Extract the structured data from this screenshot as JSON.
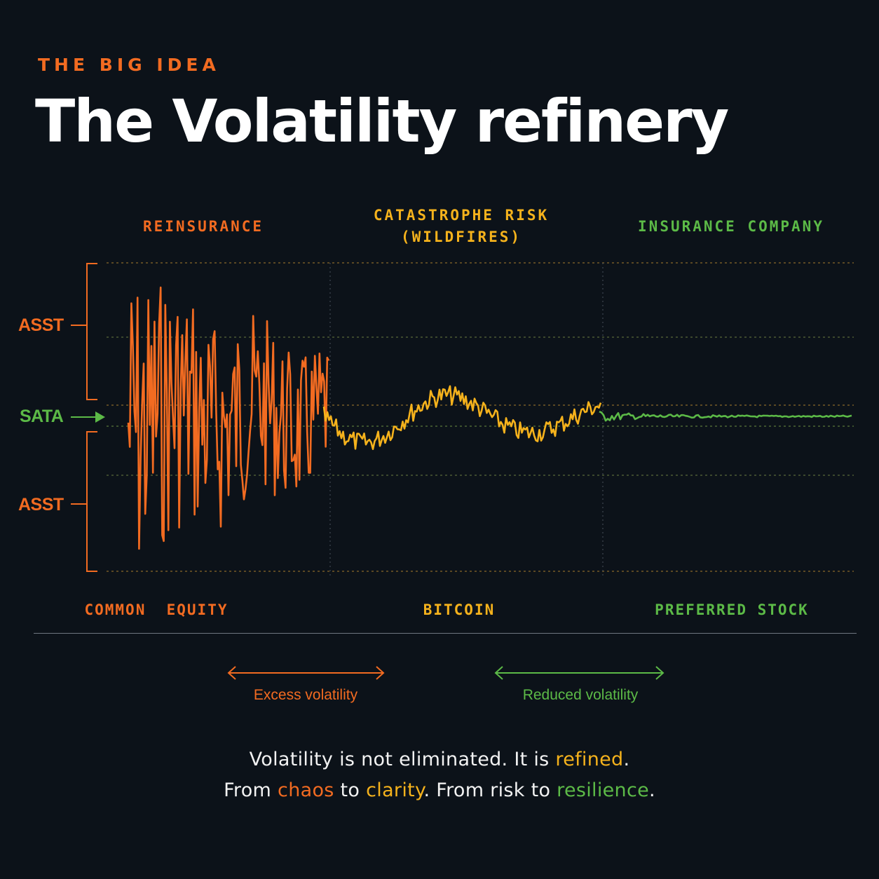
{
  "header": {
    "eyebrow": "THE BIG IDEA",
    "title": "The Volatility refinery"
  },
  "zones": {
    "top": [
      {
        "label": "REINSURANCE",
        "color": "#f26b21"
      },
      {
        "label": "CATASTROPHE RISK",
        "label2": "(WILDFIRES)",
        "color": "#f5b21c"
      },
      {
        "label": "INSURANCE COMPANY",
        "color": "#5cba47"
      }
    ],
    "bottom": [
      {
        "label": "COMMON  EQUITY",
        "color": "#f26b21"
      },
      {
        "label": "BITCOIN",
        "color": "#f5b21c"
      },
      {
        "label": "PREFERRED STOCK",
        "color": "#5cba47"
      }
    ]
  },
  "side_labels": {
    "upper": "ASST",
    "center": "SATA",
    "lower": "ASST"
  },
  "arrows": {
    "excess": "Excess volatility",
    "reduced": "Reduced volatility"
  },
  "footer": {
    "line1_a": "Volatility is not eliminated. It is ",
    "line1_hl": "refined",
    "line1_b": ".",
    "line2_a": "From ",
    "line2_chaos": "chaos",
    "line2_to": " to ",
    "line2_clarity": "clarity",
    "line2_b": ". From risk to ",
    "line2_resilience": "resilience",
    "line2_c": "."
  },
  "colors": {
    "orange": "#f26b21",
    "yellow": "#f5b21c",
    "green": "#5cba47",
    "background": "#0c1219"
  }
}
